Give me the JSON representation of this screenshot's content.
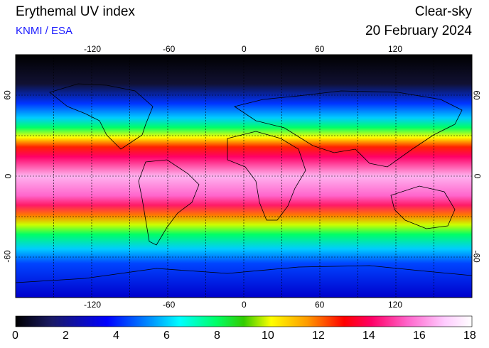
{
  "header": {
    "title": "Erythemal UV index",
    "source": "KNMI / ESA",
    "mode": "Clear-sky",
    "date": "20 February 2024"
  },
  "map": {
    "lon_ticks": [
      "-120",
      "-60",
      "0",
      "60",
      "120"
    ],
    "lat_ticks_left": [
      "60",
      "0",
      "-60"
    ],
    "lat_ticks_right": [
      "60",
      "0",
      "-60"
    ],
    "lon_range": [
      -180,
      180
    ],
    "lat_range": [
      -90,
      90
    ],
    "gridlines": "dashed, every 30°",
    "projection": "equirectangular"
  },
  "colorbar": {
    "ticks": [
      "0",
      "2",
      "4",
      "6",
      "8",
      "10",
      "12",
      "14",
      "16",
      "18"
    ],
    "range": [
      0,
      18
    ],
    "colors": [
      "#000000",
      "#1a1a66",
      "#0000ff",
      "#0099ff",
      "#00ffff",
      "#00ff66",
      "#33cc00",
      "#ffff00",
      "#ff9900",
      "#ff0000",
      "#ff0066",
      "#ff66cc",
      "#ffccff",
      "#ffffff"
    ]
  }
}
